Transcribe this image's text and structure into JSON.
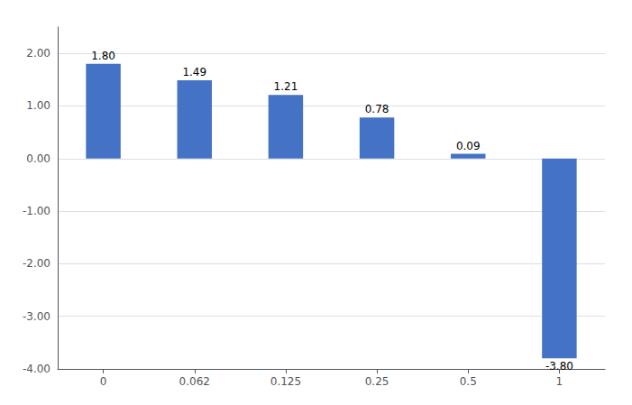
{
  "chart_data": {
    "type": "bar",
    "categories": [
      "0",
      "0.062",
      "0.125",
      "0.25",
      "0.5",
      "1"
    ],
    "values": [
      1.8,
      1.49,
      1.21,
      0.78,
      0.09,
      -3.8
    ],
    "value_labels": [
      "1.80",
      "1.49",
      "1.21",
      "0.78",
      "0.09",
      "-3.80"
    ],
    "data_labels": true,
    "color": "#4472C4",
    "ylim": [
      -4.0,
      2.5
    ],
    "yticks": [
      {
        "value": -4.0,
        "label": "-4.00"
      },
      {
        "value": -3.0,
        "label": "-3.00"
      },
      {
        "value": -2.0,
        "label": "-2.00"
      },
      {
        "value": -1.0,
        "label": "-1.00"
      },
      {
        "value": 0.0,
        "label": "0.00"
      },
      {
        "value": 1.0,
        "label": "1.00"
      },
      {
        "value": 2.0,
        "label": "2.00"
      }
    ],
    "grid": true
  }
}
